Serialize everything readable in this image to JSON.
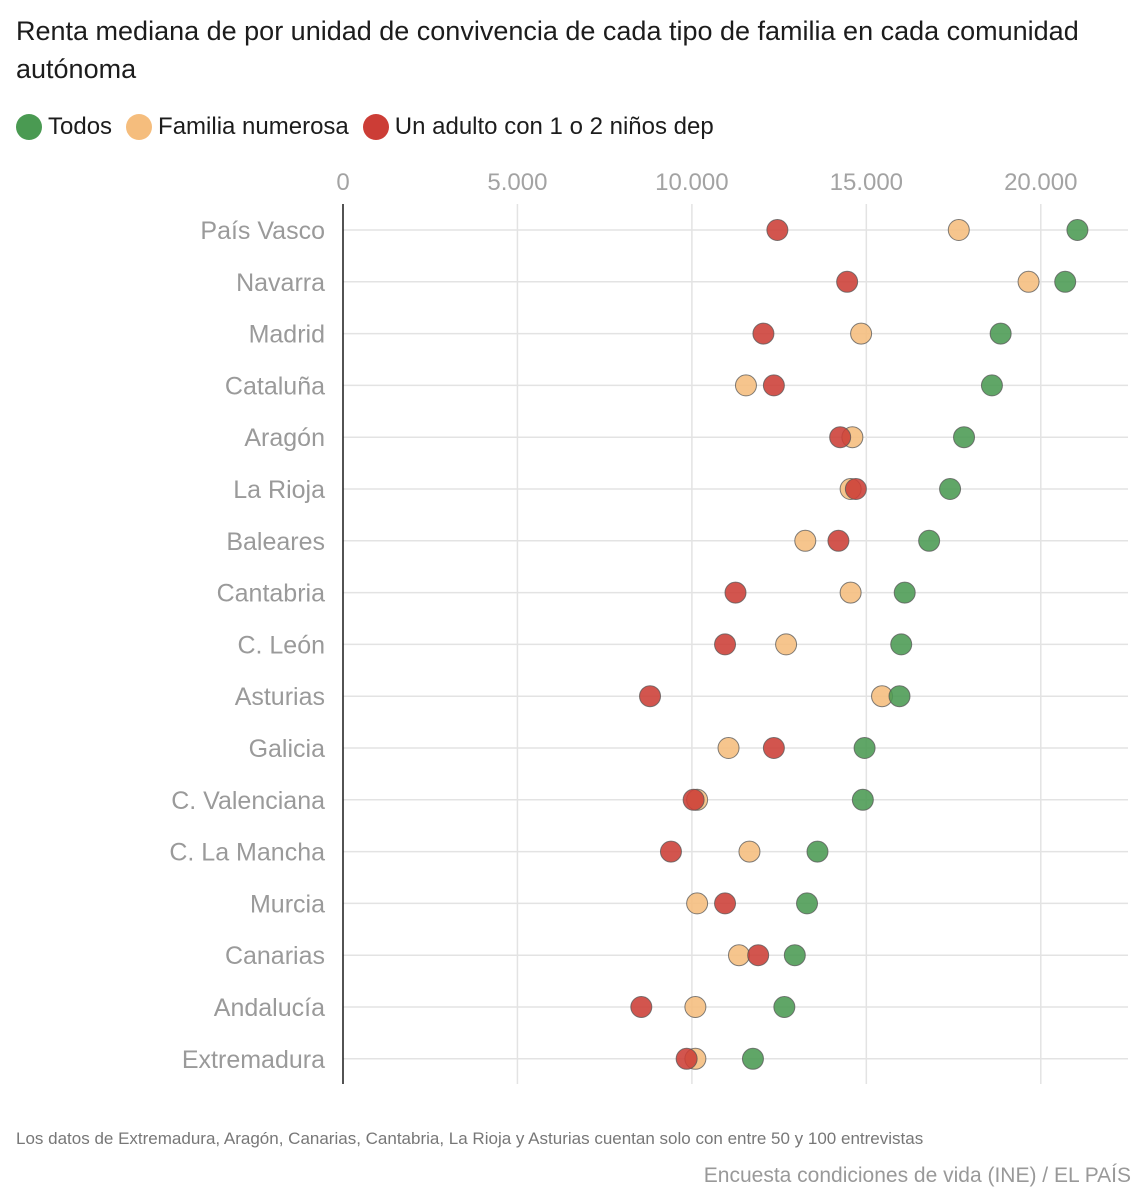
{
  "title": "Renta mediana de por unidad de convivencia de cada tipo de familia en cada comunidad autónoma",
  "legend": [
    {
      "label": "Todos",
      "color": "#4a9a52"
    },
    {
      "label": "Familia numerosa",
      "color": "#f5bd7d"
    },
    {
      "label": "Un adulto con 1 o 2 niños dep",
      "color": "#cc3d36"
    }
  ],
  "footnote": "Los datos de Extremadura, Aragón, Canarias, Cantabria, La Rioja y Asturias cuentan solo con entre 50 y 100 entrevistas",
  "source": "Encuesta condiciones de vida (INE) / EL PAÍS",
  "chart_data": {
    "type": "scatter",
    "subtype": "dot-plot",
    "title": "Renta mediana de por unidad de convivencia de cada tipo de familia en cada comunidad autónoma",
    "xlabel": "",
    "ylabel": "",
    "xlim": [
      0,
      22500
    ],
    "x_ticks": [
      0,
      5000,
      10000,
      15000,
      20000
    ],
    "x_tick_labels": [
      "0",
      "5.000",
      "10.000",
      "15.000",
      "20.000"
    ],
    "grid": true,
    "legend_position": "top-left",
    "categories": [
      "País Vasco",
      "Navarra",
      "Madrid",
      "Cataluña",
      "Aragón",
      "La Rioja",
      "Baleares",
      "Cantabria",
      "C. León",
      "Asturias",
      "Galicia",
      "C. Valenciana",
      "C. La Mancha",
      "Murcia",
      "Canarias",
      "Andalucía",
      "Extremadura"
    ],
    "series": [
      {
        "name": "Todos",
        "color": "#4a9a52",
        "values": [
          21050,
          20700,
          18850,
          18600,
          17800,
          17400,
          16800,
          16100,
          16000,
          15950,
          14950,
          14900,
          13600,
          13300,
          12950,
          12650,
          11750
        ]
      },
      {
        "name": "Familia numerosa",
        "color": "#f5bd7d",
        "values": [
          17650,
          19650,
          14850,
          11550,
          14600,
          14550,
          13250,
          14550,
          12700,
          15450,
          11050,
          10150,
          11650,
          10150,
          11350,
          10100,
          10100
        ]
      },
      {
        "name": "Un adulto con 1 o 2 niños dep",
        "color": "#cc3d36",
        "values": [
          12450,
          14450,
          12050,
          12350,
          14250,
          14700,
          14200,
          11250,
          10950,
          8800,
          12350,
          10050,
          9400,
          10950,
          11900,
          8550,
          9850
        ]
      }
    ]
  }
}
